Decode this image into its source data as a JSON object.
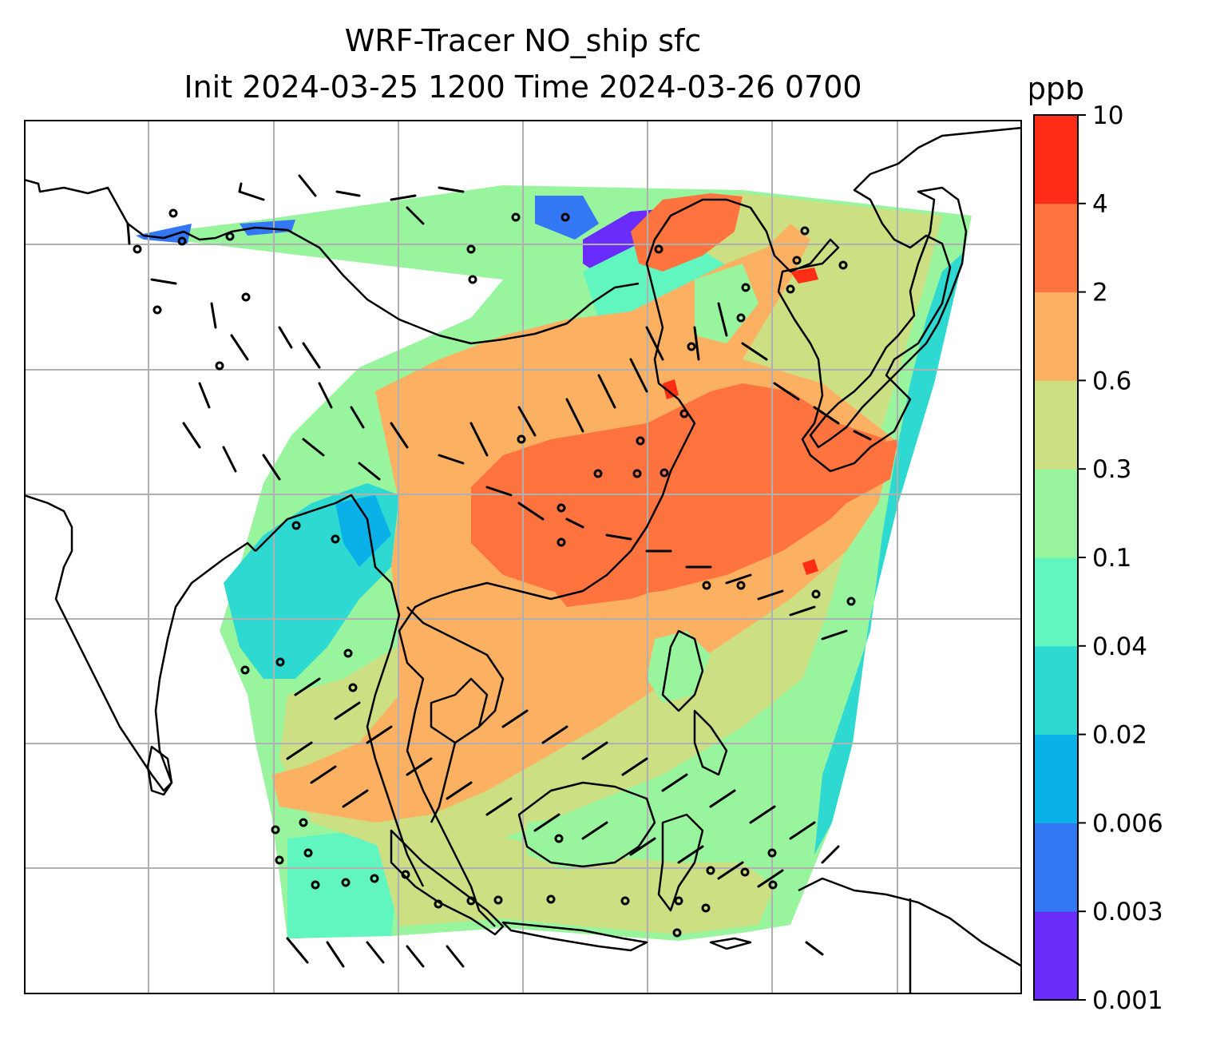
{
  "title": {
    "line1": "WRF-Tracer NO_ship sfc",
    "line2": "Init 2024-03-25 1200 Time 2024-03-26 0700"
  },
  "colorbar": {
    "units": "ppb",
    "levels": [
      "0.001",
      "0.003",
      "0.006",
      "0.02",
      "0.04",
      "0.1",
      "0.3",
      "0.6",
      "2",
      "4",
      "10"
    ],
    "colors": [
      "#6a2cfa",
      "#3377f5",
      "#0ab0e8",
      "#2ed9d2",
      "#61f5c0",
      "#99f59d",
      "#cce083",
      "#fcb162",
      "#ff733f",
      "#ff2c16"
    ]
  },
  "map": {
    "gridlines": true,
    "coastline_color": "#000000",
    "grid_color": "#b0b0b0",
    "wind_barb_color": "#000000"
  }
}
